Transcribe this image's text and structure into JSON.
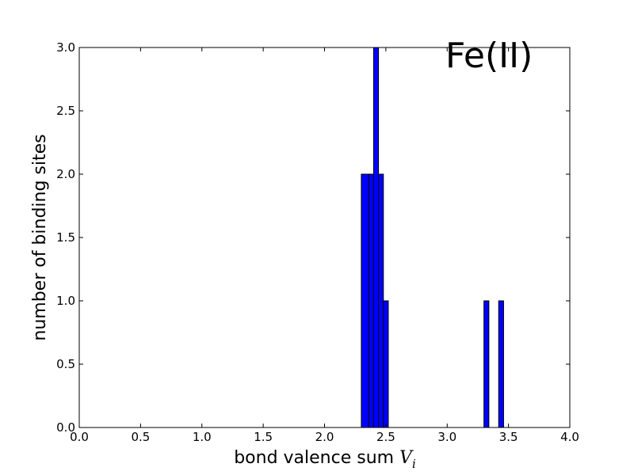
{
  "chart_data": {
    "type": "bar",
    "title": "",
    "xlabel": "bond valence sum",
    "xlabel_math": "V",
    "xlabel_math_sub": "i",
    "ylabel": "number of binding sites",
    "annotation": "Fe(II)",
    "xlim": [
      0.0,
      4.0
    ],
    "ylim": [
      0.0,
      3.0
    ],
    "xticks": [
      "0.0",
      "0.5",
      "1.0",
      "1.5",
      "2.0",
      "2.5",
      "3.0",
      "3.5",
      "4.0"
    ],
    "yticks": [
      "0.0",
      "0.5",
      "1.0",
      "1.5",
      "2.0",
      "2.5",
      "3.0"
    ],
    "grid": false,
    "bar_color": "#0000ff",
    "bins": [
      {
        "x0": 2.3,
        "x1": 2.36,
        "value": 2
      },
      {
        "x0": 2.36,
        "x1": 2.4,
        "value": 2
      },
      {
        "x0": 2.4,
        "x1": 2.44,
        "value": 3
      },
      {
        "x0": 2.44,
        "x1": 2.48,
        "value": 2
      },
      {
        "x0": 2.48,
        "x1": 2.52,
        "value": 1
      },
      {
        "x0": 3.3,
        "x1": 3.34,
        "value": 1
      },
      {
        "x0": 3.42,
        "x1": 3.46,
        "value": 1
      }
    ]
  }
}
